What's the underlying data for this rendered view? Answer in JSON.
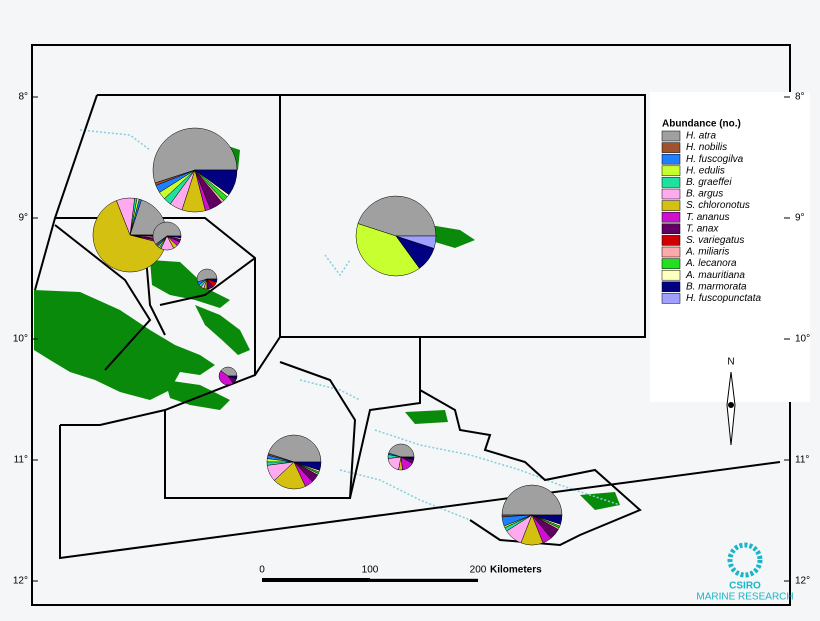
{
  "map": {
    "lat_labels": [
      "8°",
      "9°",
      "10°",
      "11°",
      "12°"
    ],
    "legend": {
      "title": "Abundance (no.)",
      "species": [
        {
          "name": "H. atra",
          "color": "#a0a0a0"
        },
        {
          "name": "H. nobilis",
          "color": "#a0522d"
        },
        {
          "name": "H. fuscogilva",
          "color": "#1e7fff"
        },
        {
          "name": "H. edulis",
          "color": "#c8ff30"
        },
        {
          "name": "B. graeffei",
          "color": "#20e0a0"
        },
        {
          "name": "B. argus",
          "color": "#ffaaee"
        },
        {
          "name": "S. chloronotus",
          "color": "#d4c010"
        },
        {
          "name": "T. ananus",
          "color": "#d010d0"
        },
        {
          "name": "T. anax",
          "color": "#600060"
        },
        {
          "name": "S. variegatus",
          "color": "#d00000"
        },
        {
          "name": "A. miliaris",
          "color": "#ffaaaa"
        },
        {
          "name": "A. lecanora",
          "color": "#20e020"
        },
        {
          "name": "A. mauritiana",
          "color": "#ffffc0"
        },
        {
          "name": "B. marmorata",
          "color": "#000080"
        },
        {
          "name": "H. fuscopunctata",
          "color": "#a0a0ff"
        }
      ]
    },
    "pies": [
      {
        "values": [
          55,
          1,
          3,
          3,
          3,
          5,
          9,
          2,
          5,
          0,
          1,
          2,
          1,
          10,
          0
        ]
      },
      {
        "values": [
          20,
          0,
          1,
          1,
          1,
          8,
          65,
          1,
          1,
          0,
          1,
          0,
          0,
          1,
          0
        ]
      },
      {
        "values": [
          60,
          2,
          2,
          2,
          2,
          15,
          5,
          5,
          3,
          0,
          2,
          0,
          0,
          2,
          0
        ]
      },
      {
        "values": [
          55,
          0,
          5,
          0,
          5,
          5,
          5,
          0,
          10,
          10,
          0,
          0,
          0,
          5,
          0
        ]
      },
      {
        "values": [
          40,
          0,
          0,
          0,
          0,
          0,
          0,
          45,
          10,
          0,
          0,
          0,
          0,
          5,
          0
        ]
      },
      {
        "values": [
          45,
          1,
          2,
          2,
          2,
          10,
          20,
          5,
          5,
          0,
          1,
          1,
          1,
          5,
          0
        ]
      },
      {
        "values": [
          45,
          0,
          0,
          40,
          0,
          0,
          0,
          0,
          0,
          0,
          0,
          0,
          0,
          10,
          5
        ]
      },
      {
        "values": [
          45,
          0,
          2,
          0,
          5,
          20,
          5,
          15,
          5,
          0,
          0,
          0,
          0,
          3,
          0
        ]
      },
      {
        "values": [
          50,
          1,
          5,
          1,
          2,
          10,
          12,
          5,
          6,
          0,
          1,
          1,
          1,
          5,
          0
        ]
      }
    ],
    "scale_bar": {
      "ticks": [
        "0",
        "100",
        "200"
      ],
      "unit": "Kilometers"
    },
    "north": "N",
    "logo": {
      "name": "CSIRO",
      "subtitle": "MARINE RESEARCH"
    }
  }
}
